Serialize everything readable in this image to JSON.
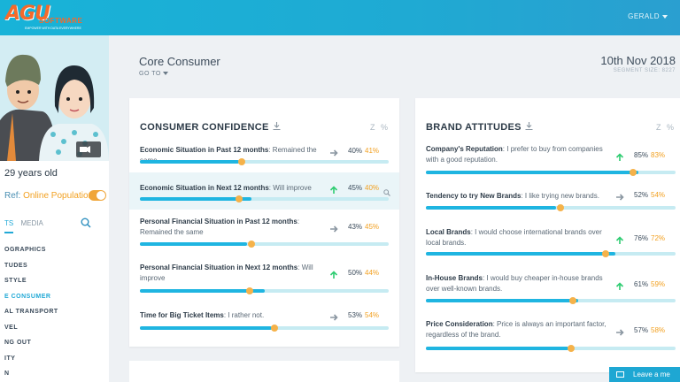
{
  "brand": {
    "logo_letters": "AGU",
    "logo_word": "SOFTWARE",
    "tagline": "EMPOWER WITH DATA EVERYWHERE"
  },
  "user": {
    "name": "GERALD"
  },
  "sidebar": {
    "age": "29 years old",
    "ref_label": "Ref:",
    "ref_value": "Online Population",
    "tab_a": "TS",
    "tab_b": "MEDIA",
    "nav": [
      "OGRAPHICS",
      "TUDES",
      "STYLE",
      "E CONSUMER",
      "AL TRANSPORT",
      "VEL",
      "NG OUT",
      "ITY",
      "N"
    ],
    "active_index": 3
  },
  "header": {
    "title": "Core Consumer",
    "goto": "GO TO",
    "date": "10th Nov 2018",
    "segment": "SEGMENT SIZE: 8227"
  },
  "colors": {
    "accent": "#1fb5e1",
    "ref": "#f2a020",
    "up": "#2ecc71",
    "flat": "#8a96a1"
  },
  "consumer_confidence": {
    "title": "CONSUMER CONFIDENCE",
    "z": "Z",
    "pct": "%",
    "rows": [
      {
        "topic": "Economic Situation in Past 12 months",
        "text": ": Remained the same",
        "trend": "flat",
        "value": "40%",
        "ref": "41%",
        "fill": 0.4,
        "dot": 0.41
      },
      {
        "topic": "Economic Situation in Next 12 months",
        "text": ": Will improve",
        "trend": "up",
        "value": "45%",
        "ref": "40%",
        "fill": 0.45,
        "dot": 0.4
      },
      {
        "topic": "Personal Financial Situation in Past 12 months",
        "text": ": Remained the same",
        "trend": "flat",
        "value": "43%",
        "ref": "45%",
        "fill": 0.43,
        "dot": 0.45
      },
      {
        "topic": "Personal Financial Situation in Next 12 months",
        "text": ": Will improve",
        "trend": "up",
        "value": "50%",
        "ref": "44%",
        "fill": 0.5,
        "dot": 0.44
      },
      {
        "topic": "Time for Big Ticket Items",
        "text": ": I rather not.",
        "trend": "flat",
        "value": "53%",
        "ref": "54%",
        "fill": 0.53,
        "dot": 0.54
      }
    ]
  },
  "brand_attitudes": {
    "title": "BRAND ATTITUDES",
    "z": "Z",
    "pct": "%",
    "rows": [
      {
        "topic": "Company's Reputation",
        "text": ": I prefer to buy from companies with a good reputation.",
        "trend": "up",
        "value": "85%",
        "ref": "83%",
        "fill": 0.85,
        "dot": 0.83
      },
      {
        "topic": "Tendency to try New Brands",
        "text": ": I like trying new brands.",
        "trend": "flat",
        "value": "52%",
        "ref": "54%",
        "fill": 0.52,
        "dot": 0.54
      },
      {
        "topic": "Local Brands",
        "text": ": I would choose international brands over local brands.",
        "trend": "up",
        "value": "76%",
        "ref": "72%",
        "fill": 0.76,
        "dot": 0.72
      },
      {
        "topic": "In-House Brands",
        "text": ": I would buy cheaper in-house brands over well-known brands.",
        "trend": "up",
        "value": "61%",
        "ref": "59%",
        "fill": 0.61,
        "dot": 0.59
      },
      {
        "topic": "Price Consideration",
        "text": ": Price is always an important factor, regardless of the brand.",
        "trend": "flat",
        "value": "57%",
        "ref": "58%",
        "fill": 0.57,
        "dot": 0.58
      }
    ]
  },
  "chat": {
    "label": "Leave a me"
  }
}
